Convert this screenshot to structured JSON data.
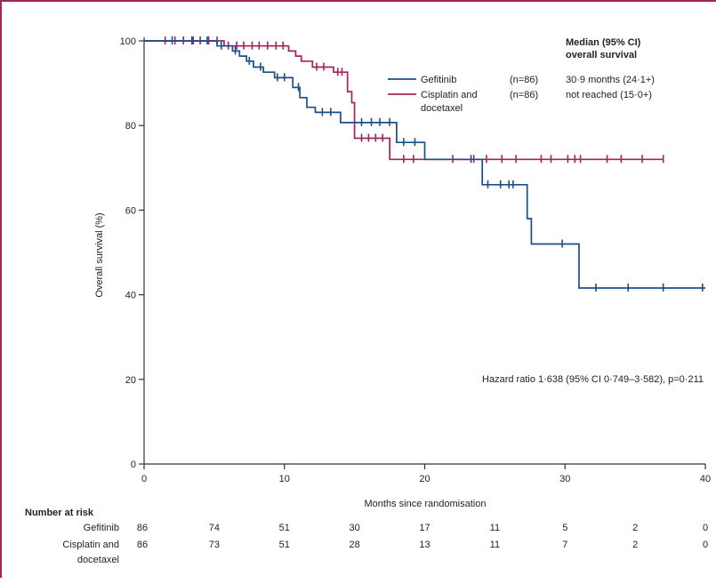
{
  "chart_data": {
    "type": "line",
    "subtype": "kaplan-meier",
    "xlabel": "Months since randomisation",
    "ylabel": "Overall survival (%)",
    "xlim": [
      0,
      40
    ],
    "ylim": [
      0,
      100
    ],
    "x_ticks": [
      "0",
      "10",
      "20",
      "30",
      "40"
    ],
    "y_ticks": [
      "0",
      "20",
      "40",
      "60",
      "80",
      "100"
    ],
    "grid": false,
    "legend_position": "top-right",
    "legend_median_title": [
      "Median (95% CI)",
      "overall survival"
    ],
    "series": [
      {
        "name": "Gefitinib",
        "n_label": "(n=86)",
        "median_text": "30·9 months (24·1+)",
        "color": "#1b4f86",
        "steps": [
          [
            0,
            100
          ],
          [
            5.2,
            100
          ],
          [
            5.2,
            98.8
          ],
          [
            6.3,
            98.8
          ],
          [
            6.3,
            97.6
          ],
          [
            6.8,
            97.6
          ],
          [
            6.8,
            96.4
          ],
          [
            7.3,
            96.4
          ],
          [
            7.3,
            95.2
          ],
          [
            7.8,
            95.2
          ],
          [
            7.8,
            93.8
          ],
          [
            8.5,
            93.8
          ],
          [
            8.5,
            92.6
          ],
          [
            9.3,
            92.6
          ],
          [
            9.3,
            91.3
          ],
          [
            10.6,
            91.3
          ],
          [
            10.6,
            89.0
          ],
          [
            11.1,
            89.0
          ],
          [
            11.1,
            86.6
          ],
          [
            11.6,
            86.6
          ],
          [
            11.6,
            84.3
          ],
          [
            12.2,
            84.3
          ],
          [
            12.2,
            83.1
          ],
          [
            14.0,
            83.1
          ],
          [
            14.0,
            80.7
          ],
          [
            18.0,
            80.7
          ],
          [
            18.0,
            76.0
          ],
          [
            20.0,
            76.0
          ],
          [
            20.0,
            72.0
          ],
          [
            24.1,
            72.0
          ],
          [
            24.1,
            66.0
          ],
          [
            27.3,
            66.0
          ],
          [
            27.3,
            58.0
          ],
          [
            27.6,
            58.0
          ],
          [
            27.6,
            52.0
          ],
          [
            31.0,
            52.0
          ],
          [
            31.0,
            41.6
          ],
          [
            40.0,
            41.6
          ]
        ],
        "censor_x": [
          2,
          3.5,
          4.5,
          5.5,
          6.5,
          7.5,
          8.3,
          9.5,
          10.0,
          11.0,
          12.7,
          13.3,
          15.5,
          16.2,
          16.8,
          17.5,
          18.5,
          19.3,
          23.3,
          24.5,
          25.4,
          26.0,
          26.3,
          29.8,
          32.2,
          34.5,
          37.0,
          39.8
        ],
        "risk_numbers": [
          "86",
          "74",
          "51",
          "30",
          "17",
          "11",
          "5",
          "2",
          "0"
        ]
      },
      {
        "name": "Cisplatin and docetaxel",
        "legend_label": [
          "Cisplatin and",
          "docetaxel"
        ],
        "n_label": "(n=86)",
        "median_text": "not reached (15·0+)",
        "color": "#a3245a",
        "steps": [
          [
            0,
            100
          ],
          [
            5.7,
            100
          ],
          [
            5.7,
            98.8
          ],
          [
            10.3,
            98.8
          ],
          [
            10.3,
            97.6
          ],
          [
            10.8,
            97.6
          ],
          [
            10.8,
            96.4
          ],
          [
            11.2,
            96.4
          ],
          [
            11.2,
            95.2
          ],
          [
            12.0,
            95.2
          ],
          [
            12.0,
            93.8
          ],
          [
            13.5,
            93.8
          ],
          [
            13.5,
            92.6
          ],
          [
            14.5,
            92.6
          ],
          [
            14.5,
            88.0
          ],
          [
            14.8,
            88.0
          ],
          [
            14.8,
            85.4
          ],
          [
            15.0,
            85.4
          ],
          [
            15.0,
            77.0
          ],
          [
            17.5,
            77.0
          ],
          [
            17.5,
            72.0
          ],
          [
            37.0,
            72.0
          ]
        ],
        "censor_x": [
          1.5,
          2.2,
          2.8,
          3.4,
          4.0,
          4.6,
          5.2,
          6.0,
          6.6,
          7.1,
          7.7,
          8.2,
          8.8,
          9.4,
          9.9,
          12.3,
          12.8,
          13.8,
          14.1,
          15.5,
          16.0,
          16.5,
          17.0,
          18.5,
          19.2,
          22.0,
          23.5,
          24.4,
          25.5,
          26.5,
          28.3,
          29.0,
          30.2,
          30.7,
          31.1,
          33.0,
          34.0,
          35.5,
          37.0
        ],
        "risk_numbers": [
          "86",
          "73",
          "51",
          "28",
          "13",
          "11",
          "7",
          "2",
          "0"
        ]
      }
    ],
    "annotation": "Hazard ratio 1·638 (95% CI 0·749–3·582), p=0·211",
    "risk_table_title": "Number at risk",
    "risk_times": [
      0,
      5,
      10,
      15,
      20,
      25,
      30,
      35,
      40
    ]
  }
}
